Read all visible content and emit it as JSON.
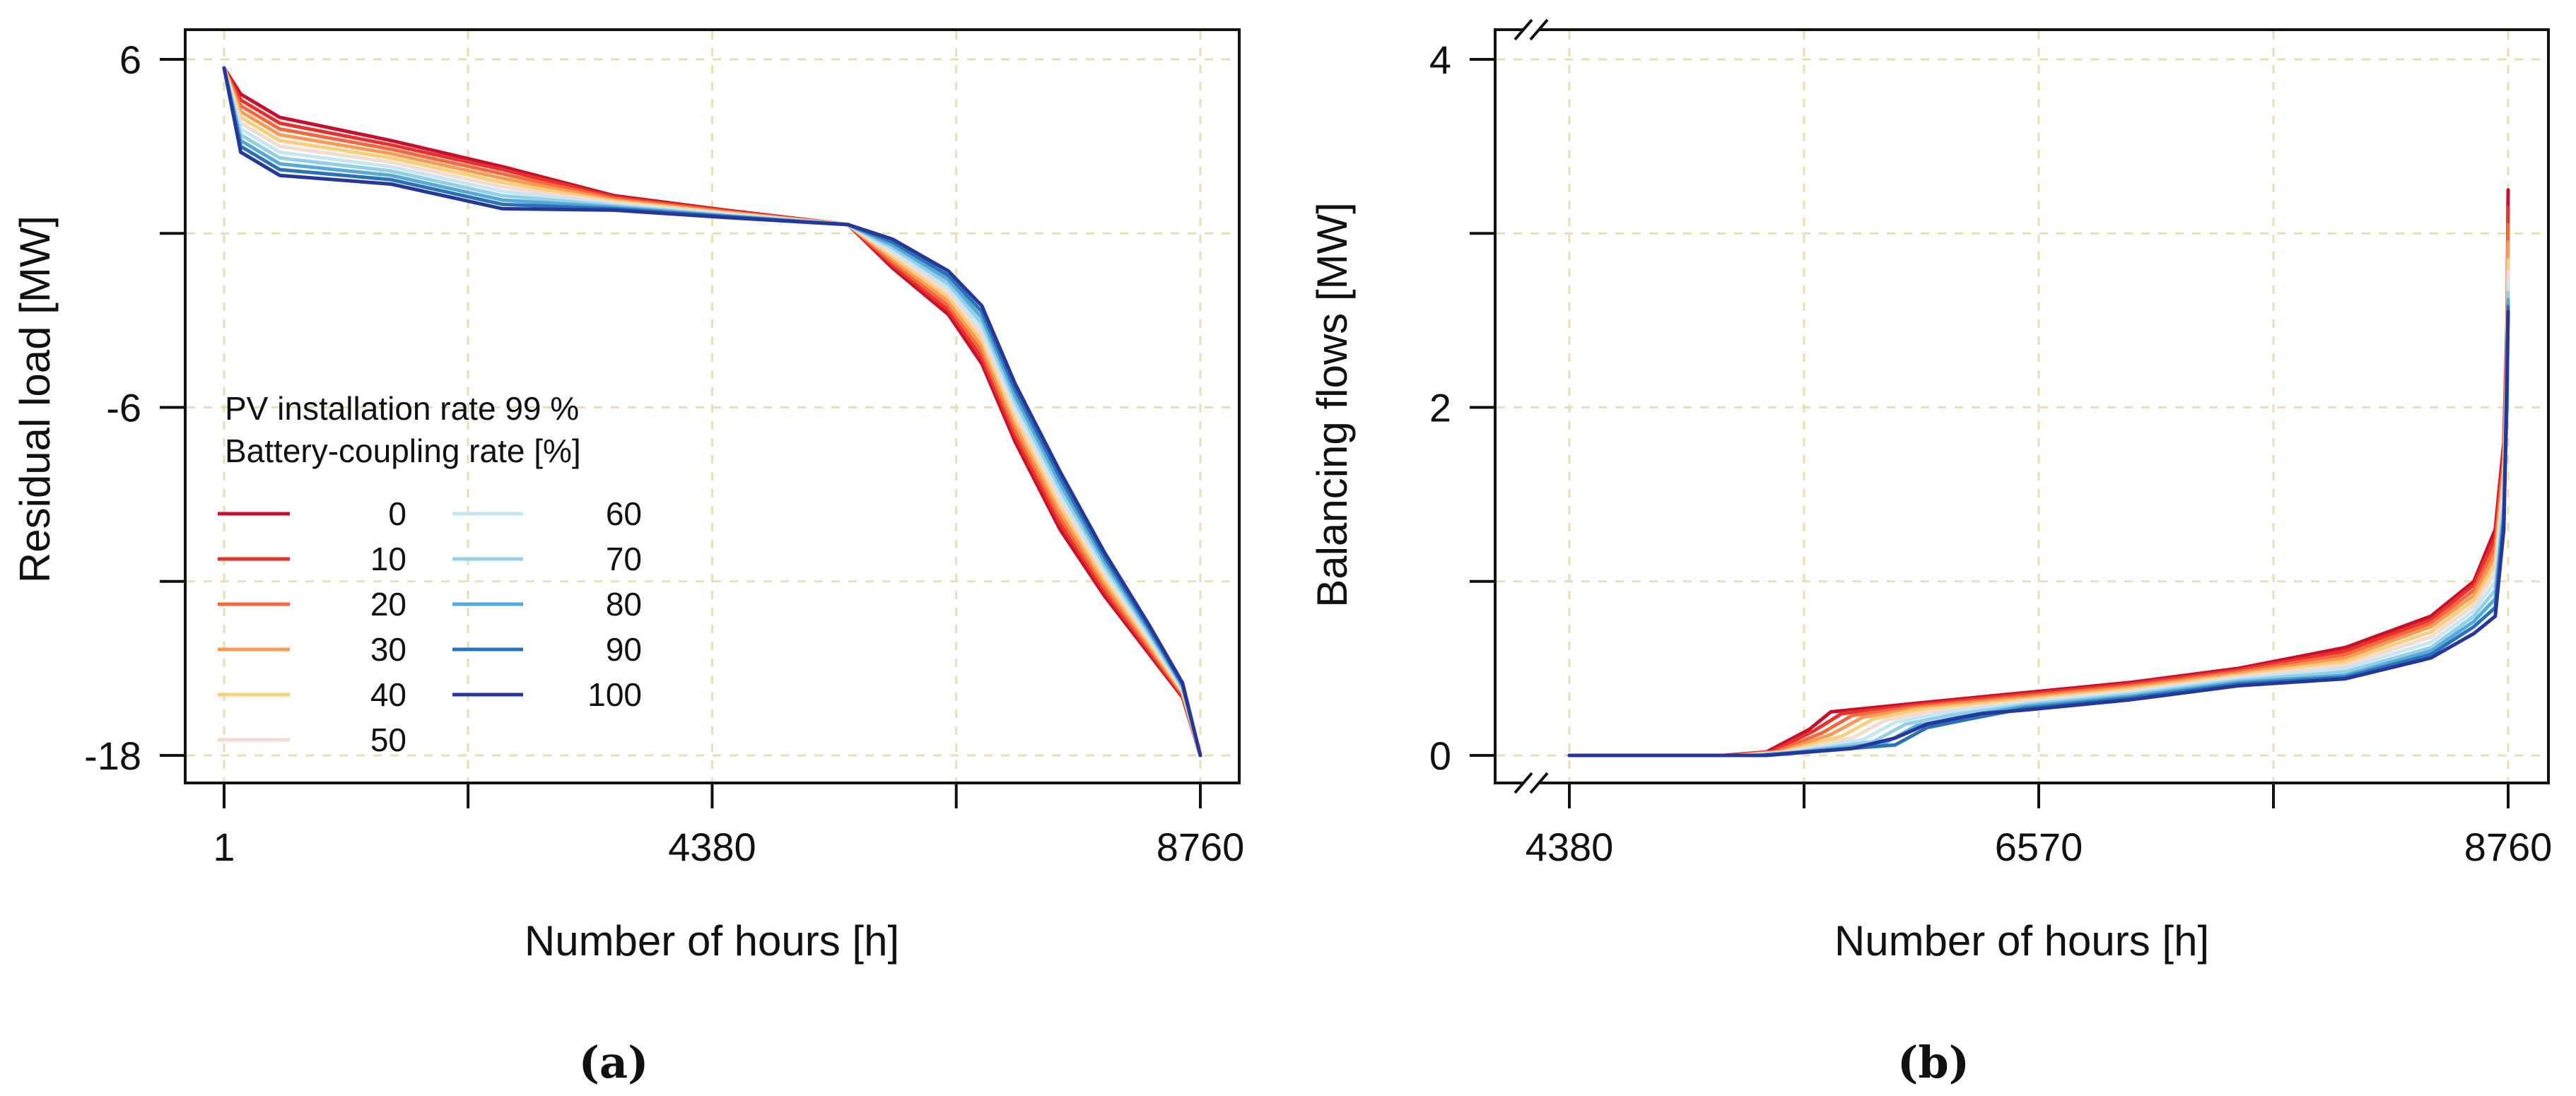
{
  "figure": {
    "caption_a": "(a)",
    "caption_b": "(b)"
  },
  "colors": {
    "series": [
      "#c8102e",
      "#e8312a",
      "#f4683f",
      "#f99a55",
      "#fbcf7a",
      "#f6d9cf",
      "#c6e7f2",
      "#94cfe7",
      "#55a8da",
      "#2b72b5",
      "#25379a"
    ],
    "grid": "#e9dfb0",
    "axis": "#111111"
  },
  "chart_data": [
    {
      "id": "a",
      "type": "line",
      "title": "",
      "xlabel": "Number of hours [h]",
      "ylabel": "Residual load [MW]",
      "xlim": [
        1,
        8760
      ],
      "ylim": [
        -18,
        6
      ],
      "xticks": [
        1,
        2190,
        4380,
        6570,
        8760
      ],
      "xtick_labels": [
        "1",
        "",
        "4380",
        "",
        "8760"
      ],
      "yticks": [
        -18,
        -12,
        -6,
        0,
        6
      ],
      "ytick_labels": [
        "-18",
        "",
        "-6",
        "",
        "6"
      ],
      "grid": true,
      "legend": {
        "title_line1": "PV installation rate 99 %",
        "title_line2": "Battery-coupling rate [%]",
        "placement": "lower-left",
        "entries": [
          "0",
          "10",
          "20",
          "30",
          "40",
          "50",
          "60",
          "70",
          "80",
          "90",
          "100"
        ]
      },
      "series": [
        {
          "name": "0",
          "x": [
            1,
            150,
            500,
            1500,
            2500,
            3500,
            4500,
            5600,
            6000,
            6500,
            6800,
            7100,
            7500,
            7900,
            8300,
            8600,
            8760
          ],
          "y": [
            5.7,
            4.8,
            4.0,
            3.2,
            2.3,
            1.3,
            0.8,
            0.3,
            -1.2,
            -2.8,
            -4.5,
            -7.2,
            -10.2,
            -12.5,
            -14.5,
            -16.0,
            -18
          ]
        },
        {
          "name": "10",
          "x": [
            1,
            150,
            500,
            1500,
            2500,
            3500,
            4500,
            5600,
            6000,
            6500,
            6800,
            7100,
            7500,
            7900,
            8300,
            8600,
            8760
          ],
          "y": [
            5.7,
            4.6,
            3.8,
            3.05,
            2.2,
            1.25,
            0.78,
            0.3,
            -1.1,
            -2.65,
            -4.3,
            -7.0,
            -10.0,
            -12.35,
            -14.4,
            -15.95,
            -18
          ]
        },
        {
          "name": "20",
          "x": [
            1,
            150,
            500,
            1500,
            2500,
            3500,
            4500,
            5600,
            6000,
            6500,
            6800,
            7100,
            7500,
            7900,
            8300,
            8600,
            8760
          ],
          "y": [
            5.7,
            4.4,
            3.6,
            2.9,
            2.05,
            1.2,
            0.75,
            0.3,
            -1.0,
            -2.5,
            -4.1,
            -6.8,
            -9.8,
            -12.2,
            -14.3,
            -15.9,
            -18
          ]
        },
        {
          "name": "30",
          "x": [
            1,
            150,
            500,
            1500,
            2500,
            3500,
            4500,
            5600,
            6000,
            6500,
            6800,
            7100,
            7500,
            7900,
            8300,
            8600,
            8760
          ],
          "y": [
            5.7,
            4.2,
            3.4,
            2.75,
            1.9,
            1.15,
            0.72,
            0.3,
            -0.9,
            -2.35,
            -3.9,
            -6.6,
            -9.6,
            -12.05,
            -14.2,
            -15.85,
            -18
          ]
        },
        {
          "name": "40",
          "x": [
            1,
            150,
            500,
            1500,
            2500,
            3500,
            4500,
            5600,
            6000,
            6500,
            6800,
            7100,
            7500,
            7900,
            8300,
            8600,
            8760
          ],
          "y": [
            5.7,
            4.0,
            3.2,
            2.6,
            1.75,
            1.1,
            0.7,
            0.3,
            -0.8,
            -2.2,
            -3.7,
            -6.4,
            -9.4,
            -11.9,
            -14.1,
            -15.8,
            -18
          ]
        },
        {
          "name": "50",
          "x": [
            1,
            150,
            500,
            1500,
            2500,
            3500,
            4500,
            5600,
            6000,
            6500,
            6800,
            7100,
            7500,
            7900,
            8300,
            8600,
            8760
          ],
          "y": [
            5.7,
            3.8,
            3.0,
            2.45,
            1.6,
            1.05,
            0.68,
            0.3,
            -0.7,
            -2.05,
            -3.5,
            -6.2,
            -9.2,
            -11.75,
            -14.0,
            -15.75,
            -18
          ]
        },
        {
          "name": "60",
          "x": [
            1,
            150,
            500,
            1500,
            2500,
            3500,
            4500,
            5600,
            6000,
            6500,
            6800,
            7100,
            7500,
            7900,
            8300,
            8600,
            8760
          ],
          "y": [
            5.7,
            3.6,
            2.8,
            2.3,
            1.45,
            1.0,
            0.65,
            0.3,
            -0.6,
            -1.9,
            -3.3,
            -6.0,
            -9.0,
            -11.6,
            -13.9,
            -15.7,
            -18
          ]
        },
        {
          "name": "70",
          "x": [
            1,
            150,
            500,
            1500,
            2500,
            3500,
            4500,
            5600,
            6000,
            6500,
            6800,
            7100,
            7500,
            7900,
            8300,
            8600,
            8760
          ],
          "y": [
            5.7,
            3.4,
            2.6,
            2.15,
            1.3,
            0.95,
            0.62,
            0.3,
            -0.5,
            -1.75,
            -3.1,
            -5.8,
            -8.8,
            -11.45,
            -13.8,
            -15.65,
            -18
          ]
        },
        {
          "name": "80",
          "x": [
            1,
            150,
            500,
            1500,
            2500,
            3500,
            4500,
            5600,
            6000,
            6500,
            6800,
            7100,
            7500,
            7900,
            8300,
            8600,
            8760
          ],
          "y": [
            5.7,
            3.2,
            2.4,
            2.0,
            1.15,
            0.9,
            0.6,
            0.3,
            -0.4,
            -1.6,
            -2.9,
            -5.6,
            -8.6,
            -11.3,
            -13.7,
            -15.6,
            -18
          ]
        },
        {
          "name": "90",
          "x": [
            1,
            150,
            500,
            1500,
            2500,
            3500,
            4500,
            5600,
            6000,
            6500,
            6800,
            7100,
            7500,
            7900,
            8300,
            8600,
            8760
          ],
          "y": [
            5.7,
            3.0,
            2.2,
            1.85,
            1.0,
            0.85,
            0.58,
            0.3,
            -0.3,
            -1.45,
            -2.7,
            -5.4,
            -8.4,
            -11.15,
            -13.6,
            -15.55,
            -18
          ]
        },
        {
          "name": "100",
          "x": [
            1,
            150,
            500,
            1500,
            2500,
            3500,
            4500,
            5600,
            6000,
            6500,
            6800,
            7100,
            7500,
            7900,
            8300,
            8600,
            8760
          ],
          "y": [
            5.7,
            2.8,
            2.0,
            1.7,
            0.85,
            0.8,
            0.55,
            0.3,
            -0.2,
            -1.3,
            -2.5,
            -5.2,
            -8.2,
            -11.0,
            -13.5,
            -15.5,
            -18
          ]
        }
      ]
    },
    {
      "id": "b",
      "type": "line",
      "title": "",
      "xlabel": "Number of hours [h]",
      "ylabel": "Balancing flows [MW]",
      "xlim": [
        4380,
        8760
      ],
      "ylim": [
        0,
        4
      ],
      "xticks": [
        4380,
        5475,
        6570,
        7665,
        8760
      ],
      "xtick_labels": [
        "4380",
        "",
        "6570",
        "",
        "8760"
      ],
      "yticks": [
        0,
        1,
        2,
        3,
        4
      ],
      "ytick_labels": [
        "0",
        "",
        "2",
        "",
        "4"
      ],
      "axis_break": "left",
      "grid": true,
      "series": [
        {
          "name": "0",
          "x": [
            4380,
            5100,
            5300,
            5500,
            5600,
            6000,
            6500,
            7000,
            7500,
            8000,
            8400,
            8600,
            8700,
            8740,
            8755,
            8760
          ],
          "y": [
            0,
            0,
            0.02,
            0.15,
            0.25,
            0.3,
            0.36,
            0.42,
            0.5,
            0.62,
            0.8,
            1.0,
            1.3,
            1.8,
            2.5,
            3.25
          ]
        },
        {
          "name": "10",
          "x": [
            4380,
            5120,
            5320,
            5520,
            5650,
            6000,
            6500,
            7000,
            7500,
            8000,
            8400,
            8600,
            8700,
            8740,
            8755,
            8760
          ],
          "y": [
            0,
            0,
            0.02,
            0.14,
            0.24,
            0.29,
            0.35,
            0.41,
            0.49,
            0.6,
            0.78,
            0.98,
            1.25,
            1.75,
            2.45,
            3.15
          ]
        },
        {
          "name": "20",
          "x": [
            4380,
            5140,
            5340,
            5560,
            5700,
            6000,
            6500,
            7000,
            7500,
            8000,
            8400,
            8600,
            8700,
            8740,
            8755,
            8760
          ],
          "y": [
            0,
            0,
            0.02,
            0.13,
            0.23,
            0.28,
            0.34,
            0.4,
            0.48,
            0.58,
            0.76,
            0.95,
            1.2,
            1.7,
            2.4,
            3.05
          ]
        },
        {
          "name": "30",
          "x": [
            4380,
            5160,
            5360,
            5600,
            5750,
            6000,
            6500,
            7000,
            7500,
            8000,
            8400,
            8600,
            8700,
            8740,
            8755,
            8760
          ],
          "y": [
            0,
            0,
            0.02,
            0.12,
            0.22,
            0.27,
            0.33,
            0.39,
            0.47,
            0.56,
            0.74,
            0.92,
            1.15,
            1.65,
            2.35,
            2.95
          ]
        },
        {
          "name": "40",
          "x": [
            4380,
            5180,
            5380,
            5650,
            5800,
            6000,
            6500,
            7000,
            7500,
            8000,
            8400,
            8600,
            8700,
            8740,
            8755,
            8760
          ],
          "y": [
            0,
            0,
            0.02,
            0.11,
            0.21,
            0.26,
            0.32,
            0.38,
            0.46,
            0.54,
            0.71,
            0.89,
            1.1,
            1.6,
            2.3,
            2.85
          ]
        },
        {
          "name": "50",
          "x": [
            4380,
            5200,
            5400,
            5700,
            5850,
            6050,
            6500,
            7000,
            7500,
            8000,
            8400,
            8600,
            8700,
            8740,
            8755,
            8760
          ],
          "y": [
            0,
            0,
            0.02,
            0.1,
            0.2,
            0.25,
            0.31,
            0.37,
            0.45,
            0.52,
            0.68,
            0.86,
            1.05,
            1.55,
            2.25,
            2.78
          ]
        },
        {
          "name": "60",
          "x": [
            4380,
            5220,
            5420,
            5750,
            5900,
            6100,
            6500,
            7000,
            7500,
            8000,
            8400,
            8600,
            8700,
            8740,
            8755,
            8760
          ],
          "y": [
            0,
            0,
            0.02,
            0.09,
            0.19,
            0.24,
            0.3,
            0.36,
            0.44,
            0.5,
            0.65,
            0.83,
            1.0,
            1.5,
            2.2,
            2.72
          ]
        },
        {
          "name": "70",
          "x": [
            4380,
            5240,
            5440,
            5800,
            5950,
            6150,
            6500,
            7000,
            7500,
            8000,
            8400,
            8600,
            8700,
            8740,
            8755,
            8760
          ],
          "y": [
            0,
            0,
            0.02,
            0.08,
            0.18,
            0.23,
            0.29,
            0.35,
            0.43,
            0.48,
            0.62,
            0.8,
            0.95,
            1.45,
            2.15,
            2.66
          ]
        },
        {
          "name": "80",
          "x": [
            4380,
            5260,
            5460,
            5850,
            6000,
            6200,
            6500,
            7000,
            7500,
            8000,
            8400,
            8600,
            8700,
            8740,
            8755,
            8760
          ],
          "y": [
            0,
            0,
            0.02,
            0.07,
            0.17,
            0.22,
            0.28,
            0.34,
            0.42,
            0.46,
            0.6,
            0.77,
            0.9,
            1.4,
            2.1,
            2.62
          ]
        },
        {
          "name": "90",
          "x": [
            4380,
            5280,
            5480,
            5900,
            6050,
            6250,
            6500,
            7000,
            7500,
            8000,
            8400,
            8600,
            8700,
            8740,
            8755,
            8760
          ],
          "y": [
            0,
            0,
            0.02,
            0.06,
            0.16,
            0.21,
            0.27,
            0.33,
            0.41,
            0.45,
            0.58,
            0.74,
            0.85,
            1.35,
            2.05,
            2.58
          ]
        },
        {
          "name": "100",
          "x": [
            4380,
            5300,
            5500,
            5700,
            5900,
            6050,
            6300,
            6500,
            7000,
            7500,
            8000,
            8400,
            8600,
            8700,
            8740,
            8760
          ],
          "y": [
            0,
            0,
            0.02,
            0.04,
            0.1,
            0.18,
            0.24,
            0.26,
            0.32,
            0.4,
            0.44,
            0.56,
            0.7,
            0.8,
            1.3,
            2.55
          ]
        }
      ]
    }
  ]
}
